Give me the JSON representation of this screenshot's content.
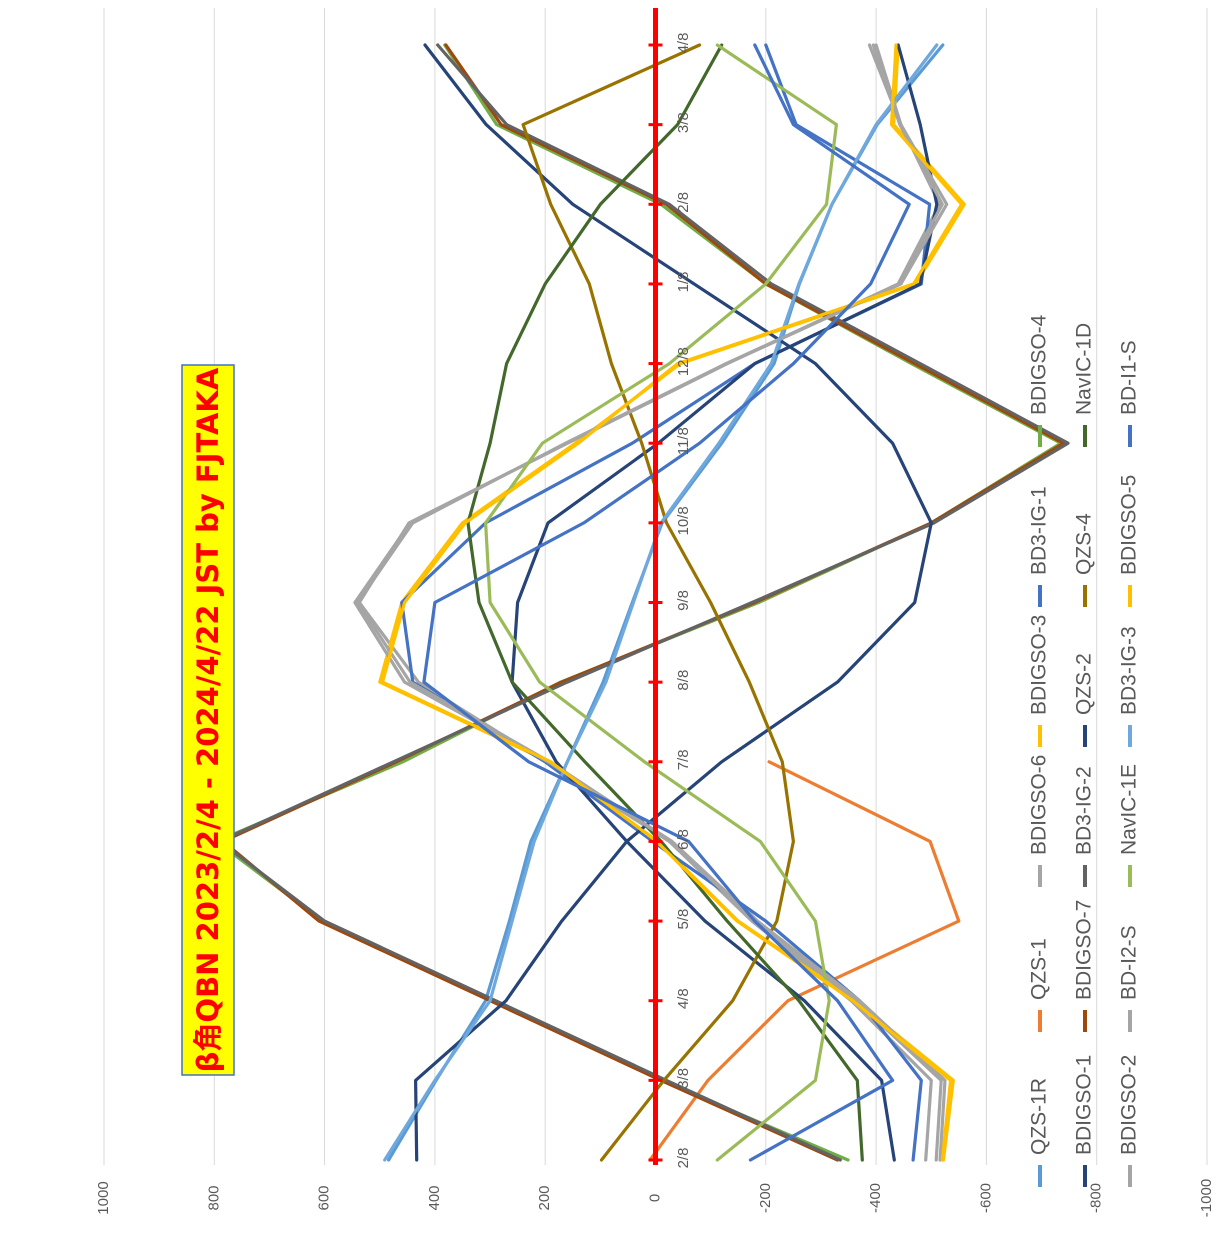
{
  "chart_data": {
    "type": "line",
    "title": "β角QBN 2023/2/4 - 2024/4/22 JST by FJTAKA",
    "orientation": "rotated-90-clockwise",
    "value_axis": {
      "min": -1000,
      "max": 1000,
      "major": 200,
      "tick_labels": [
        "1000",
        "800",
        "600",
        "400",
        "200",
        "0",
        "-200",
        "-400",
        "-600",
        "-800",
        "-1000"
      ],
      "grid": true
    },
    "date_axis": {
      "start": "2023/2/4",
      "end": "2024/4/22",
      "tick_labels": [
        "2/8",
        "3/8",
        "4/8",
        "5/8",
        "6/8",
        "7/8",
        "8/8",
        "9/8",
        "10/8",
        "11/8",
        "12/8",
        "1/8",
        "2/8",
        "3/8",
        "4/8"
      ]
    },
    "zero_line_color": "#ff0000",
    "series": [
      {
        "name": "QZS-1R",
        "color": "#5b9bd5",
        "values": [
          484,
          398,
          308,
          265,
          226,
          160,
          95,
          42,
          -12,
          -120,
          -215,
          -261,
          -320,
          -402,
          -521
        ]
      },
      {
        "name": "QZS-1",
        "color": "#ed7d31",
        "values": [
          10,
          -95,
          -240,
          -550,
          -498,
          -206,
          null,
          null,
          null,
          null,
          null,
          null,
          null,
          null,
          null
        ]
      },
      {
        "name": "BDIGSO-6",
        "color": "#a5a5a5",
        "values": [
          -490,
          -500,
          -355,
          -175,
          -25,
          200,
          430,
          537,
          447,
          160,
          -130,
          -440,
          -515,
          -445,
          -388
        ]
      },
      {
        "name": "BDIGSO-3",
        "color": "#ffc000",
        "values": [
          -522,
          -540,
          -362,
          -150,
          -4,
          193,
          500,
          460,
          350,
          145,
          -45,
          -472,
          -560,
          -432,
          -440
        ]
      },
      {
        "name": "BD3-IG-1",
        "color": "#4472c4",
        "values": [
          -467,
          -482,
          -370,
          -200,
          5,
          200,
          440,
          460,
          308,
          42,
          -180,
          -482,
          -497,
          -255,
          -200
        ]
      },
      {
        "name": "BDIGSO-4",
        "color": "#70ad47",
        "values": [
          -349,
          -10,
          292,
          604,
          796,
          458,
          172,
          -187,
          -500,
          -735,
          -464,
          -200,
          -10,
          288,
          382
        ]
      },
      {
        "name": "BDIGSO-1",
        "color": "#264478",
        "values": [
          -433,
          -410,
          -270,
          -90,
          52,
          180,
          260,
          250,
          195,
          -5,
          -180,
          -480,
          -510,
          -480,
          -440
        ]
      },
      {
        "name": "BDIGSO-7",
        "color": "#9e480e",
        "values": [
          -330,
          -10,
          300,
          610,
          784,
          470,
          170,
          -180,
          -500,
          -740,
          -470,
          -200,
          -20,
          280,
          380
        ]
      },
      {
        "name": "BD3-IG-2",
        "color": "#636363",
        "values": [
          -335,
          -20,
          290,
          600,
          790,
          475,
          160,
          -175,
          -505,
          -748,
          -480,
          -210,
          -25,
          270,
          395
        ]
      },
      {
        "name": "QZS-2",
        "color": "#264478",
        "values": [
          433,
          435,
          271,
          170,
          52,
          -120,
          -330,
          -470,
          -500,
          -430,
          -290,
          -70,
          150,
          307,
          418
        ]
      },
      {
        "name": "QZS-4",
        "color": "#997300",
        "values": [
          98,
          -15,
          -140,
          -220,
          -250,
          -230,
          -170,
          -100,
          -20,
          25,
          80,
          120,
          190,
          240,
          -80
        ]
      },
      {
        "name": "NavIC-1D",
        "color": "#43682b",
        "values": [
          -375,
          -366,
          -260,
          -130,
          -10,
          128,
          260,
          320,
          340,
          300,
          270,
          200,
          100,
          -40,
          -120
        ]
      },
      {
        "name": "BDIGSO-2",
        "color": "#a5a5a5",
        "values": [
          -516,
          -525,
          -370,
          -185,
          -30,
          195,
          455,
          545,
          445,
          160,
          -130,
          -445,
          -528,
          -445,
          -400
        ]
      },
      {
        "name": "BD-I2-S",
        "color": "#a5a5a5",
        "values": [
          -509,
          -518,
          -363,
          -180,
          -27,
          192,
          445,
          540,
          440,
          163,
          -128,
          -442,
          -520,
          -443,
          -395
        ]
      },
      {
        "name": "NavIC-1E",
        "color": "#9bbb59",
        "values": [
          -112,
          -290,
          -315,
          -290,
          -190,
          20,
          210,
          300,
          308,
          205,
          -25,
          -200,
          -310,
          -328,
          -112
        ]
      },
      {
        "name": "BD3-IG-3",
        "color": "#6fa8dc",
        "values": [
          491,
          400,
          300,
          260,
          220,
          160,
          90,
          40,
          -10,
          -115,
          -210,
          -260,
          -320,
          -400,
          -510
        ]
      },
      {
        "name": "BDIGSO-5",
        "color": "#ffc000",
        "values": [
          -520,
          -535,
          -358,
          -148,
          -2,
          190,
          495,
          455,
          345,
          140,
          -40,
          -468,
          -555,
          -428,
          -436
        ]
      },
      {
        "name": "BD-I1-S",
        "color": "#4472c4",
        "values": [
          -172,
          -430,
          -330,
          -180,
          -60,
          230,
          420,
          400,
          130,
          -80,
          -250,
          -390,
          -460,
          -250,
          -180
        ]
      }
    ]
  }
}
